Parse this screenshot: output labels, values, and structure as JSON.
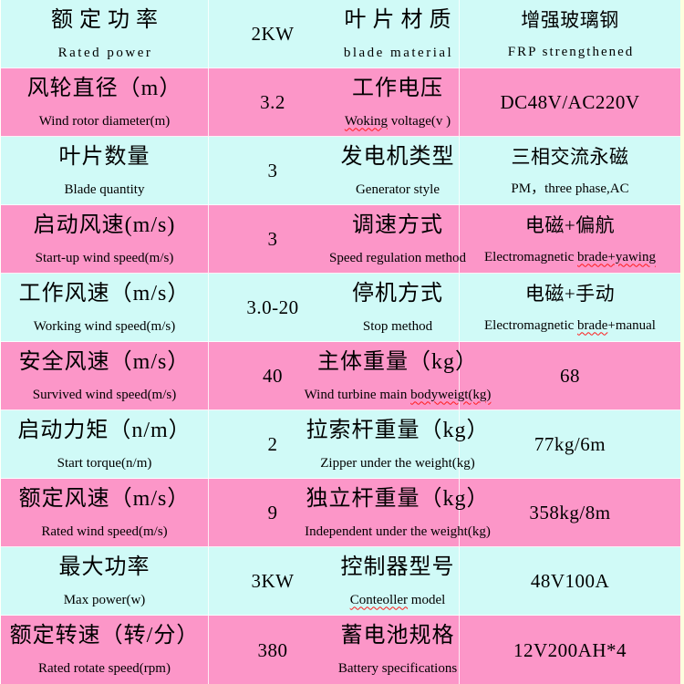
{
  "page": {
    "background_color": "#FCFFDE",
    "row_color_cyan": "#D0FAF7",
    "row_color_pink": "#FC96C8",
    "grid_line_color": "#FFFFFF",
    "squiggle_color": "#FF1A1A",
    "text_color": "#000000"
  },
  "rows": [
    {
      "bg": "cyan",
      "label1": {
        "cn": "额定功率",
        "en": "Rated power",
        "sq": ""
      },
      "value1": {
        "main": "2KW",
        "sub": "",
        "sq": ""
      },
      "label2": {
        "cn": "叶片材质",
        "en": "blade material",
        "sq": ""
      },
      "value2": {
        "main": "增强玻璃钢",
        "sub": "FRP strengthened",
        "sq": ""
      }
    },
    {
      "bg": "pink",
      "label1": {
        "cn": "风轮直径（m）",
        "en": "Wind rotor diameter(m)",
        "sq": ""
      },
      "value1": {
        "main": "3.2",
        "sub": "",
        "sq": ""
      },
      "label2": {
        "cn": "工作电压",
        "en": "Woking voltage(v )",
        "sq": "Woking"
      },
      "value2": {
        "main": "DC48V/AC220V",
        "sub": "",
        "sq": ""
      }
    },
    {
      "bg": "cyan",
      "label1": {
        "cn": "叶片数量",
        "en": "Blade quantity",
        "sq": ""
      },
      "value1": {
        "main": "3",
        "sub": "",
        "sq": ""
      },
      "label2": {
        "cn": "发电机类型",
        "en": "Generator style",
        "sq": ""
      },
      "value2": {
        "main": "三相交流永磁",
        "sub": "PM，three phase,AC",
        "sq": ""
      }
    },
    {
      "bg": "pink",
      "label1": {
        "cn": "启动风速(m/s)",
        "en": "Start-up wind speed(m/s)",
        "sq": ""
      },
      "value1": {
        "main": "3",
        "sub": "",
        "sq": ""
      },
      "label2": {
        "cn": "调速方式",
        "en": "Speed regulation method",
        "sq": ""
      },
      "value2": {
        "main": "电磁+偏航",
        "sub": "Electromagnetic brade+yawing",
        "sq": "brade+yawing"
      }
    },
    {
      "bg": "cyan",
      "label1": {
        "cn": "工作风速（m/s）",
        "en": "Working wind speed(m/s)",
        "sq": ""
      },
      "value1": {
        "main": "3.0-20",
        "sub": "",
        "sq": ""
      },
      "label2": {
        "cn": "停机方式",
        "en": "Stop method",
        "sq": ""
      },
      "value2": {
        "main": "电磁+手动",
        "sub": "Electromagnetic brade+manual",
        "sq": "brade"
      }
    },
    {
      "bg": "pink",
      "label1": {
        "cn": "安全风速（m/s）",
        "en": "Survived wind speed(m/s)",
        "sq": ""
      },
      "value1": {
        "main": "40",
        "sub": "",
        "sq": ""
      },
      "label2": {
        "cn": "主体重量（kg）",
        "en": "Wind turbine main bodyweigt(kg)",
        "sq": "bodyweigt(kg)"
      },
      "value2": {
        "main": "68",
        "sub": "",
        "sq": ""
      }
    },
    {
      "bg": "cyan",
      "label1": {
        "cn": "启动力矩（n/m）",
        "en": "Start torque(n/m)",
        "sq": ""
      },
      "value1": {
        "main": "2",
        "sub": "",
        "sq": ""
      },
      "label2": {
        "cn": "拉索杆重量（kg）",
        "en": "Zipper under the weight(kg)",
        "sq": ""
      },
      "value2": {
        "main": "77kg/6m",
        "sub": "",
        "sq": ""
      }
    },
    {
      "bg": "pink",
      "label1": {
        "cn": "额定风速（m/s）",
        "en": "Rated wind speed(m/s)",
        "sq": ""
      },
      "value1": {
        "main": "9",
        "sub": "",
        "sq": ""
      },
      "label2": {
        "cn": "独立杆重量（kg）",
        "en": "Independent under the weight(kg)",
        "sq": ""
      },
      "value2": {
        "main": "358kg/8m",
        "sub": "",
        "sq": ""
      }
    },
    {
      "bg": "cyan",
      "label1": {
        "cn": "最大功率",
        "en": "Max power(w)",
        "sq": ""
      },
      "value1": {
        "main": "3KW",
        "sub": "",
        "sq": ""
      },
      "label2": {
        "cn": "控制器型号",
        "en": "Conteoller model",
        "sq": "Conteoller"
      },
      "value2": {
        "main": "48V100A",
        "sub": "",
        "sq": ""
      }
    },
    {
      "bg": "pink",
      "label1": {
        "cn": "额定转速（转/分）",
        "en": "Rated rotate speed(rpm)",
        "sq": ""
      },
      "value1": {
        "main": "380",
        "sub": "",
        "sq": ""
      },
      "label2": {
        "cn": "蓄电池规格",
        "en": "Battery specifications",
        "sq": ""
      },
      "value2": {
        "main": "12V200AH*4",
        "sub": "",
        "sq": ""
      }
    }
  ]
}
